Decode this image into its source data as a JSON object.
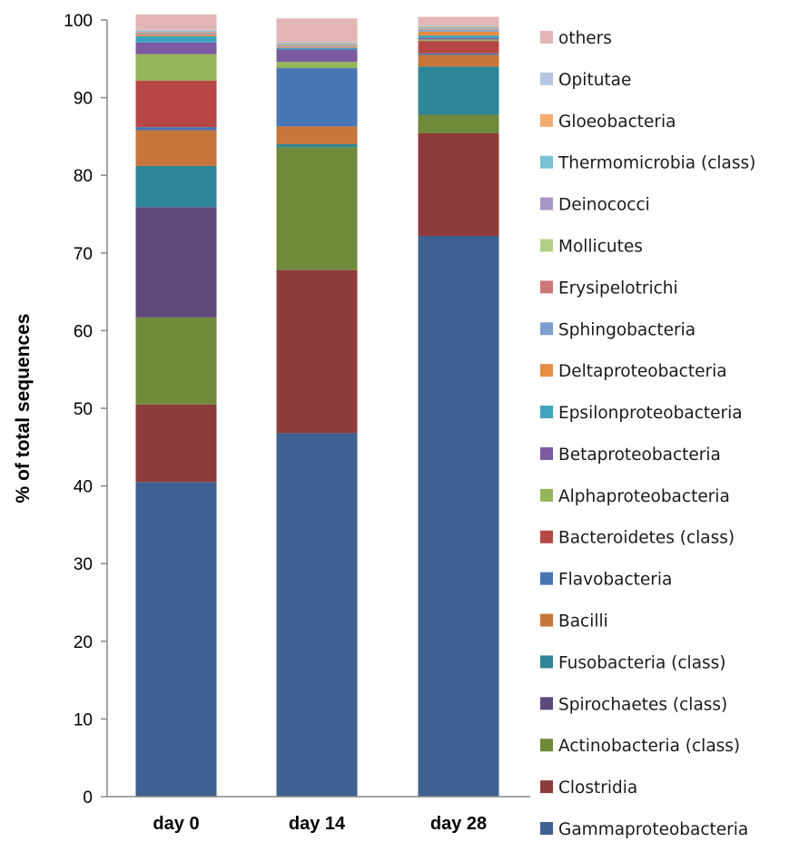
{
  "chart_data": {
    "type": "bar",
    "stacked": true,
    "title": "",
    "xlabel": "",
    "ylabel": "% of total sequences",
    "ylim": [
      0,
      100
    ],
    "yticks": [
      "0",
      "10",
      "20",
      "30",
      "40",
      "50",
      "60",
      "70",
      "80",
      "90",
      "100"
    ],
    "grid": false,
    "legend_position": "right",
    "categories": [
      "day 0",
      "day 14",
      "day 28"
    ],
    "series": [
      {
        "name": "Gammaproteobacteria",
        "color": "#3d6190",
        "values": [
          40.5,
          46.8,
          72.2
        ]
      },
      {
        "name": "Clostridia",
        "color": "#8e3b3b",
        "values": [
          10.0,
          21.0,
          13.2
        ]
      },
      {
        "name": "Actinobacteria (class)",
        "color": "#6f8a3a",
        "values": [
          11.2,
          15.8,
          2.4
        ]
      },
      {
        "name": "Spirochaetes (class)",
        "color": "#5d4a7b",
        "values": [
          14.2,
          0.0,
          0.0
        ]
      },
      {
        "name": "Fusobacteria (class)",
        "color": "#2e8596",
        "values": [
          5.3,
          0.4,
          6.2
        ]
      },
      {
        "name": "Bacilli",
        "color": "#c6763a",
        "values": [
          4.6,
          2.3,
          1.5
        ]
      },
      {
        "name": "Flavobacteria",
        "color": "#4876b5",
        "values": [
          0.4,
          7.5,
          0.2
        ]
      },
      {
        "name": "Bacteroidetes (class)",
        "color": "#b64745",
        "values": [
          6.0,
          0.0,
          1.6
        ]
      },
      {
        "name": "Alphaproteobacteria",
        "color": "#95b55a",
        "values": [
          3.4,
          0.8,
          0.2
        ]
      },
      {
        "name": "Betaproteobacteria",
        "color": "#7a5aa0",
        "values": [
          1.5,
          1.6,
          0.2
        ]
      },
      {
        "name": "Epsilonproteobacteria",
        "color": "#3da4bc",
        "values": [
          0.8,
          0.2,
          0.3
        ]
      },
      {
        "name": "Deltaproteobacteria",
        "color": "#e58d42",
        "values": [
          0.2,
          0.1,
          0.5
        ]
      },
      {
        "name": "Sphingobacteria",
        "color": "#7c9fd0",
        "values": [
          0.1,
          0.1,
          0.2
        ]
      },
      {
        "name": "Erysipelotrichi",
        "color": "#cc7878",
        "values": [
          0.1,
          0.1,
          0.1
        ]
      },
      {
        "name": "Mollicutes",
        "color": "#b2cf87",
        "values": [
          0.1,
          0.1,
          0.1
        ]
      },
      {
        "name": "Deinococci",
        "color": "#a794c6",
        "values": [
          0.1,
          0.1,
          0.1
        ]
      },
      {
        "name": "Thermomicrobia (class)",
        "color": "#78c3d6",
        "values": [
          0.1,
          0.1,
          0.1
        ]
      },
      {
        "name": "Gloeobacteria",
        "color": "#f4ab72",
        "values": [
          0.1,
          0.1,
          0.1
        ]
      },
      {
        "name": "Opitutae",
        "color": "#b4c4e2",
        "values": [
          0.1,
          0.1,
          0.1
        ]
      },
      {
        "name": "others",
        "color": "#e3b5b6",
        "values": [
          1.9,
          3.0,
          1.1
        ]
      }
    ]
  }
}
